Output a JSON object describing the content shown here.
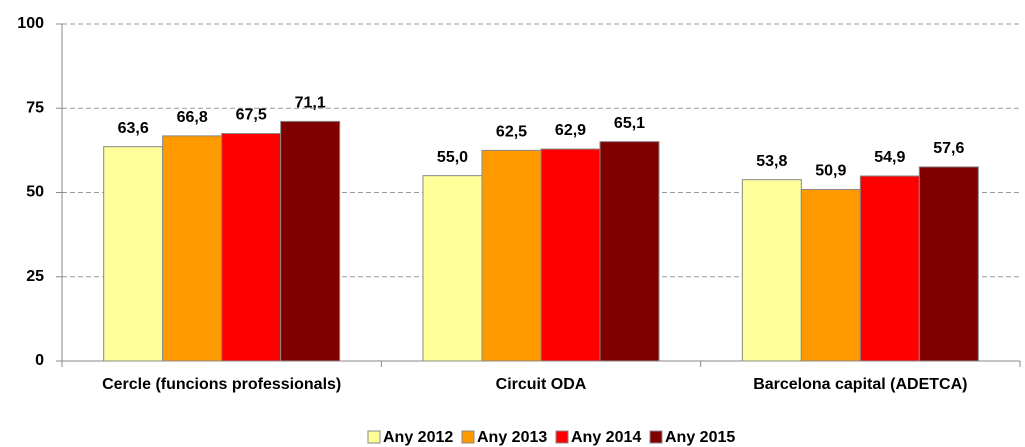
{
  "chart_data": {
    "type": "bar",
    "categories": [
      "Cercle (funcions professionals)",
      "Circuit ODA",
      "Barcelona capital (ADETCA)"
    ],
    "series": [
      {
        "name": "Any 2012",
        "color": "#ffff99",
        "values": [
          63.6,
          55.0,
          53.8
        ],
        "value_labels": [
          "63,6",
          "55,0",
          "53,8"
        ]
      },
      {
        "name": "Any 2013",
        "color": "#ff9900",
        "values": [
          66.8,
          62.5,
          50.9
        ],
        "value_labels": [
          "66,8",
          "62,5",
          "50,9"
        ]
      },
      {
        "name": "Any 2014",
        "color": "#ff0000",
        "values": [
          67.5,
          62.9,
          54.9
        ],
        "value_labels": [
          "67,5",
          "62,9",
          "54,9"
        ]
      },
      {
        "name": "Any 2015",
        "color": "#800000",
        "values": [
          71.1,
          65.1,
          57.6
        ],
        "value_labels": [
          "71,1",
          "65,1",
          "57,6"
        ]
      }
    ],
    "ylim": [
      0,
      100
    ],
    "yticks": [
      0,
      25,
      50,
      75,
      100
    ],
    "grid": true,
    "legend": "bottom"
  }
}
